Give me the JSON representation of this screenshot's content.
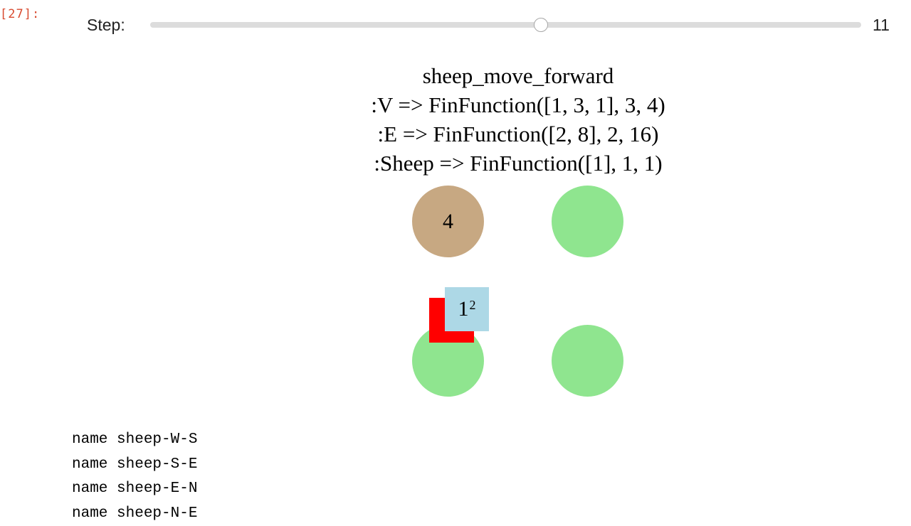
{
  "cell": {
    "prompt": "[27]:"
  },
  "slider": {
    "label": "Step:",
    "value": "11",
    "fraction": 0.55
  },
  "titles": [
    "sheep_move_forward",
    ":V => FinFunction([1, 3, 1], 3, 4)",
    ":E => FinFunction([2, 8], 2, 16)",
    ":Sheep => FinFunction([1], 1, 1)"
  ],
  "graph": {
    "nodes": [
      {
        "label": "4",
        "color": "#c7a882"
      },
      {
        "label": "",
        "color": "#8fe58f"
      },
      {
        "label": "",
        "color": "#8fe58f"
      },
      {
        "label": "",
        "color": "#8fe58f"
      }
    ],
    "sheep": {
      "label": "1",
      "superscript": "2",
      "marker_color": "#ff0000",
      "label_color": "#add8e6"
    }
  },
  "output_lines": [
    "name sheep-W-S",
    "name sheep-S-E",
    "name sheep-E-N",
    "name sheep-N-E"
  ]
}
